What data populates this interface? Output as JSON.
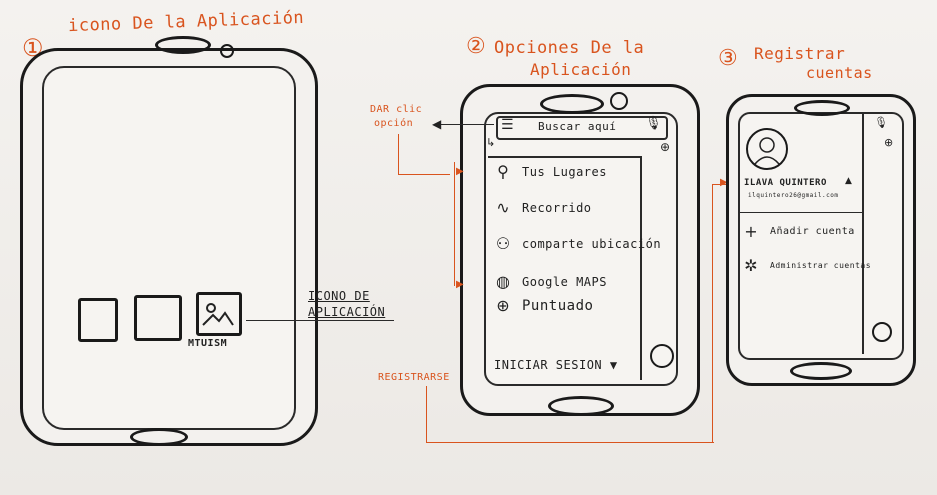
{
  "step1": {
    "number": "①",
    "title": "icono De la Aplicación",
    "app_label": "MTUISM",
    "callout": "ICONO DE APLICACIÓN"
  },
  "step2": {
    "number": "②",
    "title_line1": "Opciones De la",
    "title_line2": "Aplicación",
    "callout_click_line1": "DAR clic",
    "callout_click_line2": "opción",
    "search_placeholder": "Buscar aquí",
    "menu": [
      {
        "icon": "location-pin-icon",
        "glyph": "⚲",
        "label": "Tus Lugares"
      },
      {
        "icon": "route-icon",
        "glyph": "∿",
        "label": "Recorrido"
      },
      {
        "icon": "share-location-icon",
        "glyph": "⚇",
        "label": "comparte ubicación"
      },
      {
        "icon": "google-maps-icon",
        "glyph": "◍",
        "label": "Google MAPS"
      },
      {
        "icon": "add-circle-icon",
        "glyph": "⊕",
        "label": "Puntuado"
      }
    ],
    "login_label": "iniciar sesion",
    "register_callout": "REGISTRARSE"
  },
  "step3": {
    "number": "③",
    "title_line1": "Registrar",
    "title_line2": "cuentas",
    "user_name": "ILAVA QUINTERO",
    "user_email": "ilquintero26@gmail.com",
    "add_account": "Añadir cuenta",
    "manage_accounts": "Administrar cuentas"
  },
  "colors": {
    "annotation": "#d9541e",
    "ink": "#1a1a1a",
    "paper": "#f1efec"
  }
}
